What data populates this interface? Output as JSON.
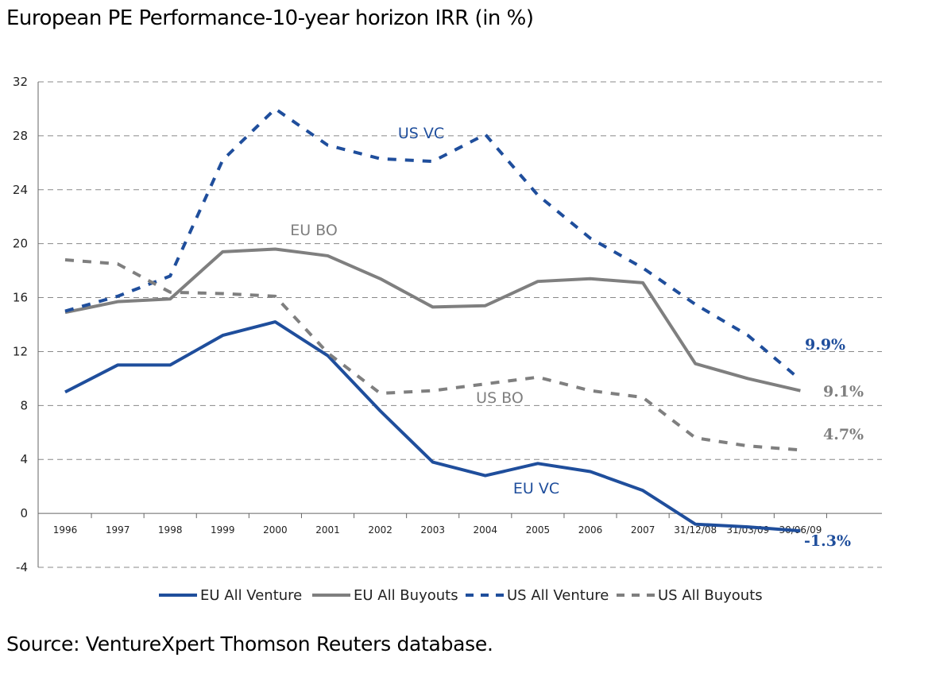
{
  "title": "European PE Performance-10-year horizon IRR (in %)",
  "source": "Source: VentureXpert Thomson Reuters database.",
  "colors": {
    "blue": "#1f4e9c",
    "gray": "#7f7f7f",
    "grid": "#888888"
  },
  "chart_data": {
    "type": "line",
    "categories": [
      "1996",
      "1997",
      "1998",
      "1999",
      "2000",
      "2001",
      "2002",
      "2003",
      "2004",
      "2005",
      "2006",
      "2007",
      "31/12/08",
      "31/03/09",
      "30/06/09"
    ],
    "ylim": [
      -4,
      32
    ],
    "yticks": [
      -4,
      0,
      4,
      8,
      12,
      16,
      20,
      24,
      28,
      32
    ],
    "grid": true,
    "legend_placement": "bottom",
    "series": [
      {
        "name": "EU All Venture",
        "color": "#1f4e9c",
        "style": "solid",
        "values": [
          9.0,
          11.0,
          11.0,
          13.2,
          14.2,
          11.7,
          7.6,
          3.8,
          2.8,
          3.7,
          3.1,
          1.7,
          -0.8,
          -1.0,
          -1.3
        ]
      },
      {
        "name": "EU All Buyouts",
        "color": "#7f7f7f",
        "style": "solid",
        "values": [
          14.9,
          15.7,
          15.9,
          19.4,
          19.6,
          19.1,
          17.4,
          15.3,
          15.4,
          17.2,
          17.4,
          17.1,
          11.1,
          10.0,
          9.1
        ]
      },
      {
        "name": "US All Venture",
        "color": "#1f4e9c",
        "style": "dashed",
        "values": [
          15.0,
          16.1,
          17.6,
          26.2,
          30.0,
          27.3,
          26.3,
          26.1,
          28.1,
          23.6,
          20.4,
          18.2,
          15.5,
          13.2,
          9.9
        ]
      },
      {
        "name": "US All Buyouts",
        "color": "#7f7f7f",
        "style": "dashed",
        "values": [
          18.8,
          18.5,
          16.4,
          16.3,
          16.1,
          11.9,
          8.9,
          9.1,
          9.6,
          10.1,
          9.1,
          8.6,
          5.6,
          5.0,
          4.7
        ]
      }
    ],
    "annotations": [
      {
        "text": "US VC",
        "color": "#1f4e9c"
      },
      {
        "text": "EU BO",
        "color": "#7f7f7f"
      },
      {
        "text": "US BO",
        "color": "#7f7f7f"
      },
      {
        "text": "EU VC",
        "color": "#1f4e9c"
      }
    ],
    "end_labels": [
      {
        "text": "9.9%",
        "color": "#1f4e9c"
      },
      {
        "text": "9.1%",
        "color": "#7f7f7f"
      },
      {
        "text": "4.7%",
        "color": "#7f7f7f"
      },
      {
        "text": "-1.3%",
        "color": "#1f4e9c"
      }
    ]
  }
}
